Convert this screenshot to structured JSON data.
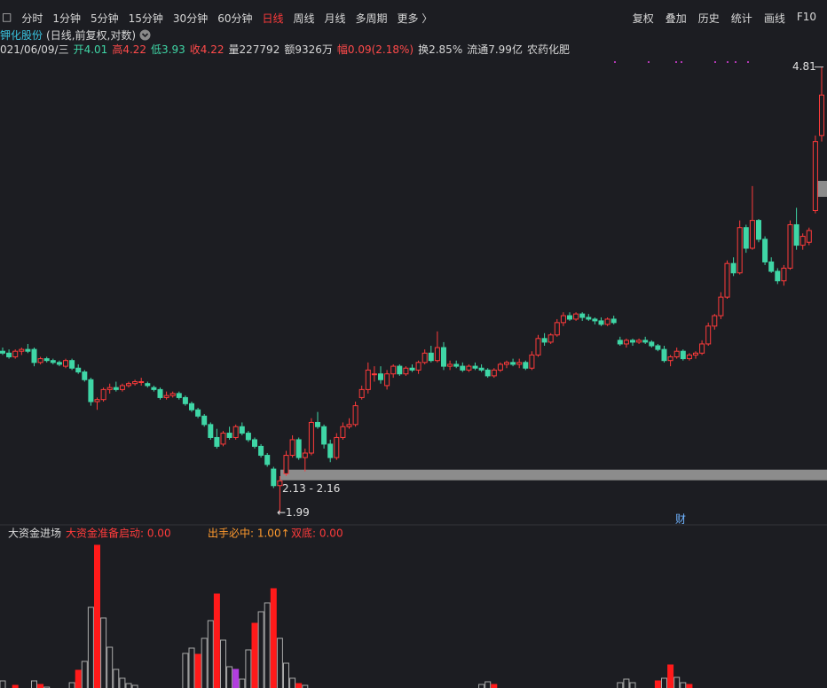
{
  "toolbar": {
    "left": [
      "□",
      "分时",
      "1分钟",
      "5分钟",
      "15分钟",
      "30分钟",
      "60分钟",
      "日线",
      "周线",
      "月线",
      "多周期",
      "更多 〉"
    ],
    "active": 7,
    "active_color": "#ff3b3b",
    "right": [
      "复权",
      "叠加",
      "历史",
      "统计",
      "画线",
      "F10"
    ]
  },
  "chart_data": [
    {
      "type": "candlestick",
      "title": "钾化股份",
      "subtitle": "(日线,前复权,对数)",
      "log": true,
      "ylim": [
        1.95,
        4.9
      ],
      "up_color": "#ff3b3b",
      "down_color": "#3fd6a6",
      "info": [
        {
          "text": "021/06/09/三",
          "color": "#d8d8d8"
        },
        {
          "text": "开4.01",
          "color": "#3fd6a6"
        },
        {
          "text": "高4.22",
          "color": "#ff4a4a"
        },
        {
          "text": "低3.93",
          "color": "#3fd6a6"
        },
        {
          "text": "收4.22",
          "color": "#ff4a4a"
        },
        {
          "text": "量227792",
          "color": "#d8d8d8"
        },
        {
          "text": "额9326万",
          "color": "#d8d8d8"
        },
        {
          "text": "幅0.09(2.18%)",
          "color": "#ff4a4a"
        },
        {
          "text": "换2.85%",
          "color": "#d8d8d8"
        },
        {
          "text": "流通7.99亿",
          "color": "#d8d8d8"
        },
        {
          "text": "农药化肥",
          "color": "#d8d8d8"
        }
      ],
      "candles": [
        [
          2.74,
          2.76,
          2.72,
          2.73
        ],
        [
          2.73,
          2.75,
          2.7,
          2.71
        ],
        [
          2.71,
          2.75,
          2.7,
          2.74
        ],
        [
          2.74,
          2.76,
          2.72,
          2.75
        ],
        [
          2.75,
          2.78,
          2.73,
          2.74
        ],
        [
          2.75,
          2.76,
          2.66,
          2.68
        ],
        [
          2.68,
          2.71,
          2.67,
          2.7
        ],
        [
          2.7,
          2.71,
          2.68,
          2.69
        ],
        [
          2.69,
          2.7,
          2.67,
          2.68
        ],
        [
          2.68,
          2.69,
          2.66,
          2.67
        ],
        [
          2.66,
          2.7,
          2.65,
          2.69
        ],
        [
          2.69,
          2.7,
          2.64,
          2.65
        ],
        [
          2.65,
          2.67,
          2.62,
          2.63
        ],
        [
          2.63,
          2.64,
          2.58,
          2.59
        ],
        [
          2.59,
          2.6,
          2.46,
          2.48
        ],
        [
          2.48,
          2.5,
          2.44,
          2.49
        ],
        [
          2.49,
          2.55,
          2.48,
          2.54
        ],
        [
          2.54,
          2.57,
          2.52,
          2.55
        ],
        [
          2.55,
          2.58,
          2.53,
          2.54
        ],
        [
          2.54,
          2.57,
          2.53,
          2.56
        ],
        [
          2.56,
          2.58,
          2.55,
          2.57
        ],
        [
          2.57,
          2.59,
          2.56,
          2.58
        ],
        [
          2.58,
          2.6,
          2.56,
          2.58
        ],
        [
          2.57,
          2.58,
          2.55,
          2.56
        ],
        [
          2.55,
          2.56,
          2.53,
          2.54
        ],
        [
          2.54,
          2.55,
          2.49,
          2.5
        ],
        [
          2.5,
          2.53,
          2.49,
          2.51
        ],
        [
          2.51,
          2.53,
          2.5,
          2.52
        ],
        [
          2.52,
          2.53,
          2.49,
          2.5
        ],
        [
          2.5,
          2.51,
          2.46,
          2.47
        ],
        [
          2.47,
          2.48,
          2.43,
          2.44
        ],
        [
          2.44,
          2.45,
          2.4,
          2.41
        ],
        [
          2.41,
          2.42,
          2.36,
          2.37
        ],
        [
          2.37,
          2.38,
          2.3,
          2.31
        ],
        [
          2.31,
          2.35,
          2.26,
          2.27
        ],
        [
          2.28,
          2.34,
          2.27,
          2.33
        ],
        [
          2.33,
          2.36,
          2.3,
          2.31
        ],
        [
          2.31,
          2.37,
          2.3,
          2.36
        ],
        [
          2.36,
          2.38,
          2.32,
          2.33
        ],
        [
          2.33,
          2.34,
          2.29,
          2.3
        ],
        [
          2.3,
          2.31,
          2.26,
          2.27
        ],
        [
          2.27,
          2.28,
          2.22,
          2.23
        ],
        [
          2.23,
          2.24,
          2.18,
          2.19
        ],
        [
          2.17,
          2.18,
          2.09,
          2.1
        ],
        [
          2.1,
          2.14,
          1.99,
          2.12
        ],
        [
          2.15,
          2.25,
          2.14,
          2.23
        ],
        [
          2.23,
          2.32,
          2.22,
          2.3
        ],
        [
          2.3,
          2.31,
          2.21,
          2.22
        ],
        [
          2.22,
          2.26,
          2.16,
          2.24
        ],
        [
          2.24,
          2.4,
          2.23,
          2.38
        ],
        [
          2.38,
          2.43,
          2.35,
          2.36
        ],
        [
          2.36,
          2.37,
          2.26,
          2.28
        ],
        [
          2.28,
          2.3,
          2.2,
          2.22
        ],
        [
          2.22,
          2.33,
          2.21,
          2.31
        ],
        [
          2.31,
          2.38,
          2.3,
          2.36
        ],
        [
          2.36,
          2.4,
          2.35,
          2.37
        ],
        [
          2.37,
          2.48,
          2.36,
          2.46
        ],
        [
          2.5,
          2.56,
          2.49,
          2.54
        ],
        [
          2.54,
          2.68,
          2.52,
          2.64
        ],
        [
          2.62,
          2.66,
          2.58,
          2.62
        ],
        [
          2.62,
          2.66,
          2.57,
          2.59
        ],
        [
          2.56,
          2.64,
          2.54,
          2.62
        ],
        [
          2.62,
          2.67,
          2.6,
          2.66
        ],
        [
          2.66,
          2.67,
          2.61,
          2.62
        ],
        [
          2.62,
          2.66,
          2.61,
          2.65
        ],
        [
          2.65,
          2.67,
          2.63,
          2.64
        ],
        [
          2.64,
          2.69,
          2.62,
          2.68
        ],
        [
          2.68,
          2.75,
          2.67,
          2.73
        ],
        [
          2.73,
          2.77,
          2.68,
          2.69
        ],
        [
          2.69,
          2.85,
          2.68,
          2.76
        ],
        [
          2.76,
          2.79,
          2.64,
          2.66
        ],
        [
          2.66,
          2.69,
          2.64,
          2.67
        ],
        [
          2.67,
          2.69,
          2.65,
          2.66
        ],
        [
          2.66,
          2.68,
          2.63,
          2.64
        ],
        [
          2.64,
          2.67,
          2.63,
          2.66
        ],
        [
          2.66,
          2.68,
          2.64,
          2.65
        ],
        [
          2.65,
          2.67,
          2.63,
          2.64
        ],
        [
          2.64,
          2.65,
          2.6,
          2.61
        ],
        [
          2.61,
          2.65,
          2.6,
          2.64
        ],
        [
          2.64,
          2.68,
          2.63,
          2.67
        ],
        [
          2.67,
          2.69,
          2.65,
          2.68
        ],
        [
          2.68,
          2.7,
          2.66,
          2.67
        ],
        [
          2.67,
          2.7,
          2.65,
          2.68
        ],
        [
          2.68,
          2.69,
          2.64,
          2.65
        ],
        [
          2.65,
          2.74,
          2.64,
          2.72
        ],
        [
          2.72,
          2.83,
          2.71,
          2.81
        ],
        [
          2.81,
          2.84,
          2.77,
          2.79
        ],
        [
          2.79,
          2.84,
          2.78,
          2.83
        ],
        [
          2.83,
          2.92,
          2.82,
          2.9
        ],
        [
          2.9,
          2.96,
          2.88,
          2.94
        ],
        [
          2.94,
          2.96,
          2.91,
          2.92
        ],
        [
          2.92,
          2.96,
          2.91,
          2.95
        ],
        [
          2.95,
          2.96,
          2.91,
          2.93
        ],
        [
          2.93,
          2.95,
          2.91,
          2.92
        ],
        [
          2.92,
          2.93,
          2.89,
          2.91
        ],
        [
          2.91,
          2.93,
          2.88,
          2.89
        ],
        [
          2.89,
          2.93,
          2.88,
          2.92
        ],
        [
          2.92,
          2.94,
          2.89,
          2.9
        ],
        [
          2.8,
          2.82,
          2.77,
          2.78
        ],
        [
          2.78,
          2.81,
          2.76,
          2.8
        ],
        [
          2.8,
          2.81,
          2.77,
          2.79
        ],
        [
          2.79,
          2.81,
          2.78,
          2.8
        ],
        [
          2.8,
          2.82,
          2.78,
          2.79
        ],
        [
          2.79,
          2.8,
          2.76,
          2.77
        ],
        [
          2.77,
          2.78,
          2.74,
          2.75
        ],
        [
          2.75,
          2.77,
          2.68,
          2.69
        ],
        [
          2.69,
          2.72,
          2.66,
          2.71
        ],
        [
          2.71,
          2.76,
          2.7,
          2.74
        ],
        [
          2.74,
          2.75,
          2.69,
          2.7
        ],
        [
          2.7,
          2.73,
          2.69,
          2.72
        ],
        [
          2.72,
          2.74,
          2.7,
          2.73
        ],
        [
          2.73,
          2.8,
          2.72,
          2.78
        ],
        [
          2.78,
          2.9,
          2.77,
          2.88
        ],
        [
          2.88,
          2.95,
          2.86,
          2.94
        ],
        [
          2.94,
          3.08,
          2.92,
          3.05
        ],
        [
          3.05,
          3.28,
          3.04,
          3.26
        ],
        [
          3.26,
          3.3,
          3.18,
          3.2
        ],
        [
          3.2,
          3.55,
          3.19,
          3.5
        ],
        [
          3.5,
          3.52,
          3.33,
          3.36
        ],
        [
          3.36,
          3.8,
          3.35,
          3.55
        ],
        [
          3.55,
          3.56,
          3.4,
          3.42
        ],
        [
          3.42,
          3.44,
          3.25,
          3.27
        ],
        [
          3.27,
          3.3,
          3.2,
          3.21
        ],
        [
          3.21,
          3.23,
          3.13,
          3.15
        ],
        [
          3.15,
          3.25,
          3.12,
          3.23
        ],
        [
          3.23,
          3.55,
          3.22,
          3.52
        ],
        [
          3.52,
          3.64,
          3.35,
          3.38
        ],
        [
          3.38,
          3.46,
          3.35,
          3.44
        ],
        [
          3.4,
          3.5,
          3.38,
          3.48
        ],
        [
          3.62,
          4.2,
          3.6,
          4.15
        ],
        [
          4.2,
          4.81,
          4.15,
          4.55
        ]
      ],
      "high_mark": 4.81,
      "low_mark": {
        "value": 1.99,
        "label": "←1.99"
      },
      "zone": {
        "label": "2.13 - 2.16",
        "low": 2.13,
        "high": 2.16
      },
      "event_label": "财"
    },
    {
      "type": "bar",
      "title": "大资金进场",
      "ylim": [
        0,
        170
      ],
      "labels": [
        {
          "text": "大资金准备启动: 0.00",
          "color": "#ff3b3b"
        },
        {
          "text": "出手必中: 1.00↑",
          "color": "#ff9a2e"
        },
        {
          "text": "双底: 0.00",
          "color": "#ff3b3b"
        }
      ],
      "x": [
        0,
        2,
        5,
        6,
        7,
        11,
        12,
        13,
        14,
        15,
        16,
        17,
        18,
        19,
        20,
        21,
        29,
        30,
        31,
        32,
        33,
        34,
        35,
        36,
        37,
        38,
        39,
        40,
        41,
        42,
        43,
        44,
        45,
        46,
        47,
        48,
        76,
        77,
        78,
        98,
        99,
        100,
        104,
        105,
        106,
        107,
        108,
        109
      ],
      "values": [
        8,
        3,
        8,
        4,
        1,
        6,
        20,
        30,
        91,
        161,
        79,
        46,
        21,
        11,
        5,
        3,
        39,
        45,
        38,
        56,
        76,
        106,
        54,
        24,
        21,
        10,
        43,
        73,
        86,
        96,
        112,
        56,
        28,
        11,
        5,
        3,
        4,
        7,
        4,
        6,
        10,
        6,
        8,
        11,
        26,
        12,
        6,
        4
      ],
      "colors": [
        "#aaaaaa",
        "#ff1a1a",
        "#aaaaaa",
        "#ff1a1a",
        "#aaaaaa",
        "#aaaaaa",
        "#ff1a1a",
        "#aaaaaa",
        "#aaaaaa",
        "#ff1a1a",
        "#aaaaaa",
        "#aaaaaa",
        "#aaaaaa",
        "#aaaaaa",
        "#aaaaaa",
        "#aaaaaa",
        "#aaaaaa",
        "#aaaaaa",
        "#ff1a1a",
        "#aaaaaa",
        "#aaaaaa",
        "#ff1a1a",
        "#aaaaaa",
        "#aaaaaa",
        "#b23ee0",
        "#aaaaaa",
        "#aaaaaa",
        "#ff1a1a",
        "#aaaaaa",
        "#aaaaaa",
        "#ff1a1a",
        "#aaaaaa",
        "#aaaaaa",
        "#aaaaaa",
        "#ff1a1a",
        "#aaaaaa",
        "#aaaaaa",
        "#aaaaaa",
        "#ff1a1a",
        "#aaaaaa",
        "#aaaaaa",
        "#aaaaaa",
        "#ff1a1a",
        "#aaaaaa",
        "#ff1a1a",
        "#aaaaaa",
        "#aaaaaa",
        "#ff1a1a"
      ]
    }
  ]
}
